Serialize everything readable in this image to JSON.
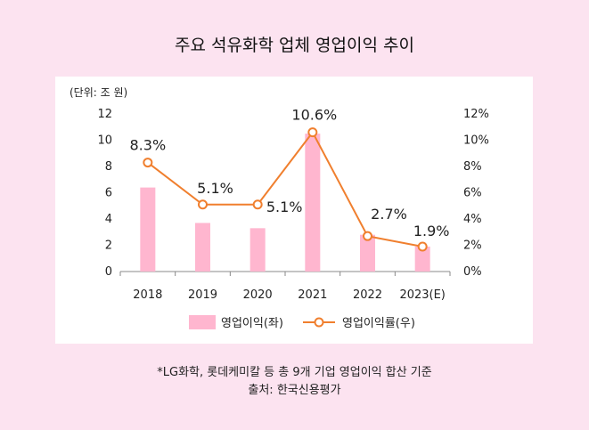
{
  "title": "주요 석유화학 업체 영업이익 추이",
  "unit_label": "(단위: 조 원)",
  "footnote": "*LG화학, 롯데케미칼 등 총 9개 기업 영업이익 합산 기준",
  "source": "출처: 한국신용평가",
  "colors": {
    "background": "#fce3f0",
    "bar": "#ffb6cf",
    "line": "#f07f2e",
    "axis": "#888888"
  },
  "chart_data": {
    "type": "bar",
    "title": "주요 석유화학 업체 영업이익 추이",
    "categories": [
      "2018",
      "2019",
      "2020",
      "2021",
      "2022",
      "2023(E)"
    ],
    "series": [
      {
        "name": "영업이익(좌)",
        "type": "bar",
        "axis": "left",
        "values": [
          6.4,
          3.7,
          3.3,
          10.5,
          2.8,
          1.9
        ]
      },
      {
        "name": "영업이익률(우)",
        "type": "line",
        "axis": "right",
        "values": [
          8.3,
          5.1,
          5.1,
          10.6,
          2.7,
          1.9
        ],
        "labels": [
          "8.3%",
          "5.1%",
          "5.1%",
          "10.6%",
          "2.7%",
          "1.9%"
        ]
      }
    ],
    "ylim_left": [
      0,
      12
    ],
    "ylim_right": [
      0,
      12
    ],
    "yticks_left": [
      "0",
      "2",
      "4",
      "6",
      "8",
      "10",
      "12"
    ],
    "yticks_right": [
      "0%",
      "2%",
      "4%",
      "6%",
      "8%",
      "10%",
      "12%"
    ],
    "legend_position": "bottom"
  }
}
